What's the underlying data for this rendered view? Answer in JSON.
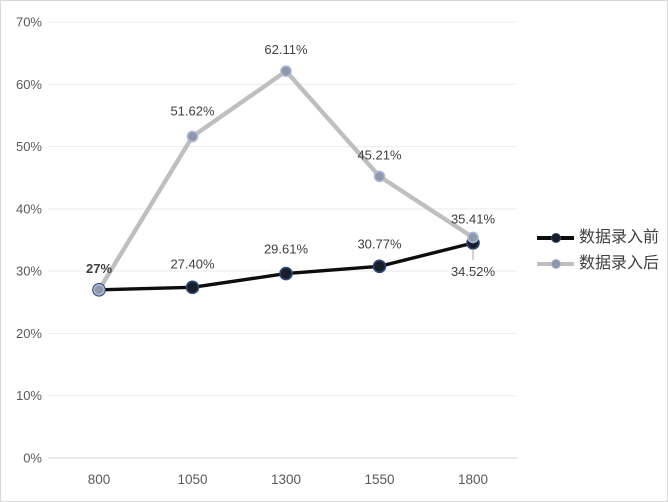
{
  "chart_data": {
    "type": "line",
    "categories": [
      "800",
      "1050",
      "1300",
      "1550",
      "1800"
    ],
    "series": [
      {
        "name": "数据录入前",
        "values": [
          27,
          27.4,
          29.61,
          30.77,
          34.52
        ],
        "point_labels": [
          "27%",
          "27.40%",
          "29.61%",
          "30.77%",
          "34.52%"
        ],
        "line_color": "#0d0d0d",
        "marker_fill": "#1a1e29",
        "marker_stroke": "#2d4777"
      },
      {
        "name": "数据录入后",
        "values": [
          27,
          51.62,
          62.11,
          45.21,
          35.41
        ],
        "point_labels": [
          "27%",
          "51.62%",
          "62.11%",
          "45.21%",
          "35.41%"
        ],
        "line_color": "#bfbfbf",
        "marker_fill": "#8e98a8",
        "marker_stroke": "#a9b8d8"
      }
    ],
    "y_ticks": [
      "0%",
      "10%",
      "20%",
      "30%",
      "40%",
      "50%",
      "60%",
      "70%"
    ],
    "ylim": [
      0,
      70
    ],
    "grid": true,
    "legend_position": "right",
    "colors": {
      "gridline": "#ececec",
      "axis_line": "#d2d2d2",
      "axis_text": "#595959",
      "data_label": "#404040",
      "leader_line": "#a6a6a6",
      "frame_border": "#d9d9d9"
    }
  }
}
